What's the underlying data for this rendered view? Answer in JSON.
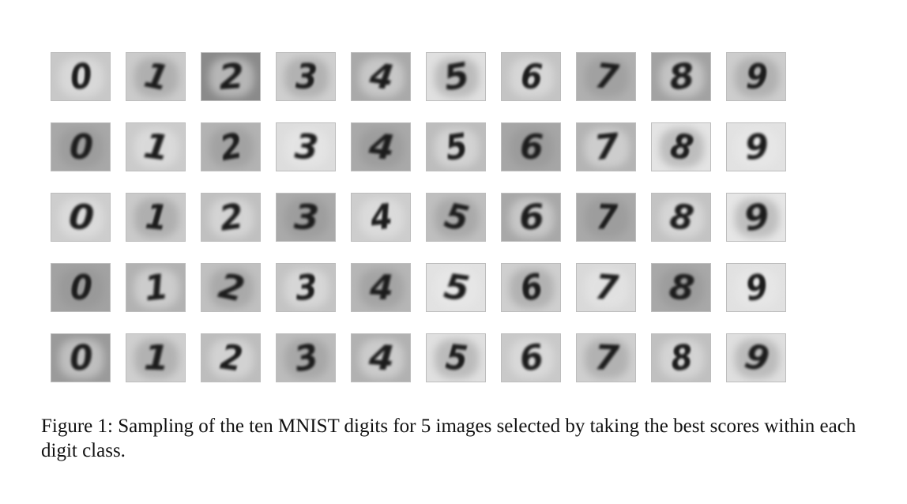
{
  "figure": {
    "digit_classes": [
      "0",
      "1",
      "2",
      "3",
      "4",
      "5",
      "6",
      "7",
      "8",
      "9"
    ],
    "rows": [
      {
        "digits": [
          "0",
          "1",
          "2",
          "3",
          "4",
          "5",
          "6",
          "7",
          "8",
          "9"
        ],
        "backgrounds": [
          "#c8c8c8",
          "#cbcbcb",
          "#8a8a8a",
          "#cfcfcf",
          "#a9a9a9",
          "#e0e0e0",
          "#c4c4c4",
          "#b0b0b0",
          "#a2a2a2",
          "#cdcdcd"
        ]
      },
      {
        "digits": [
          "0",
          "1",
          "2",
          "3",
          "4",
          "5",
          "6",
          "7",
          "8",
          "9"
        ],
        "backgrounds": [
          "#a8a8a8",
          "#cbcbcb",
          "#b3b3b3",
          "#dddddd",
          "#a9a9a9",
          "#bdbdbd",
          "#a6a6a6",
          "#b4b4b4",
          "#e4e4e4",
          "#e2e2e2"
        ]
      },
      {
        "digits": [
          "0",
          "1",
          "2",
          "3",
          "4",
          "5",
          "6",
          "7",
          "8",
          "9"
        ],
        "backgrounds": [
          "#cdcdcd",
          "#cacaca",
          "#c0c0c0",
          "#aaaaaa",
          "#cdcdcd",
          "#bfbfbf",
          "#a8a8a8",
          "#a9a9a9",
          "#c3c3c3",
          "#e6e6e6"
        ]
      },
      {
        "digits": [
          "0",
          "1",
          "2",
          "3",
          "4",
          "5",
          "6",
          "7",
          "8",
          "9"
        ],
        "backgrounds": [
          "#a2a2a2",
          "#b2b2b2",
          "#c0c0c0",
          "#c4c4c4",
          "#b6b6b6",
          "#e2e2e2",
          "#cfcfcf",
          "#d9d9d9",
          "#a8a8a8",
          "#e1e1e1"
        ]
      },
      {
        "digits": [
          "0",
          "1",
          "2",
          "3",
          "4",
          "5",
          "6",
          "7",
          "8",
          "9"
        ],
        "backgrounds": [
          "#9a9a9a",
          "#cfcfcf",
          "#bdbdbd",
          "#bcbcbc",
          "#b1b1b1",
          "#e0e0e0",
          "#c9c9c9",
          "#cfcfcf",
          "#c0c0c0",
          "#dfdfdf"
        ]
      }
    ]
  },
  "caption": "Figure 1:  Sampling of the ten MNIST digits for 5 images selected by taking the best scores within each digit class."
}
